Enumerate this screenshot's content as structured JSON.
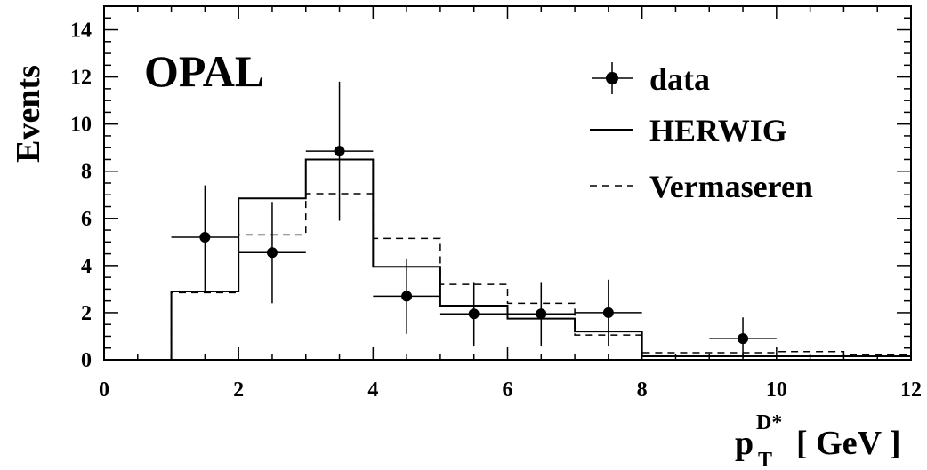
{
  "chart_data": {
    "type": "histogram",
    "experiment_label": "OPAL",
    "ylabel": "Events",
    "xlabel": {
      "base": "p",
      "superscript": "D*",
      "subscript": "T",
      "unit": "[ GeV ]"
    },
    "xlim": [
      0,
      12
    ],
    "ylim": [
      0,
      15
    ],
    "x_ticks": [
      0,
      2,
      4,
      6,
      8,
      10,
      12
    ],
    "y_ticks": [
      0,
      2,
      4,
      6,
      8,
      10,
      12,
      14
    ],
    "bin_edges": [
      1,
      2,
      3,
      4,
      5,
      6,
      7,
      8,
      9,
      10,
      11,
      12
    ],
    "series": [
      {
        "name": "data",
        "style": "points",
        "points": [
          {
            "x": 1.5,
            "y": 5.2,
            "xerr": 0.5,
            "ylow": 2.9,
            "yhigh": 7.4
          },
          {
            "x": 2.5,
            "y": 4.55,
            "xerr": 0.5,
            "ylow": 2.4,
            "yhigh": 6.7
          },
          {
            "x": 3.5,
            "y": 8.85,
            "xerr": 0.5,
            "ylow": 5.9,
            "yhigh": 11.8
          },
          {
            "x": 4.5,
            "y": 2.7,
            "xerr": 0.5,
            "ylow": 1.1,
            "yhigh": 4.3
          },
          {
            "x": 5.5,
            "y": 1.95,
            "xerr": 0.5,
            "ylow": 0.6,
            "yhigh": 3.3
          },
          {
            "x": 6.5,
            "y": 1.95,
            "xerr": 0.5,
            "ylow": 0.6,
            "yhigh": 3.3
          },
          {
            "x": 7.5,
            "y": 2.0,
            "xerr": 0.5,
            "ylow": 0.6,
            "yhigh": 3.4
          },
          {
            "x": 9.5,
            "y": 0.9,
            "xerr": 0.5,
            "ylow": 0.1,
            "yhigh": 1.8
          }
        ]
      },
      {
        "name": "HERWIG",
        "style": "solid",
        "values": [
          2.9,
          6.85,
          8.5,
          3.95,
          2.3,
          1.75,
          1.2,
          0.15,
          0.15,
          0.15,
          0.15
        ]
      },
      {
        "name": "Vermaseren",
        "style": "dashed",
        "values": [
          2.85,
          5.3,
          7.05,
          5.15,
          3.2,
          2.4,
          1.05,
          0.3,
          0.3,
          0.35,
          0.2
        ]
      }
    ],
    "legend_position": "top-right",
    "grid": false
  }
}
